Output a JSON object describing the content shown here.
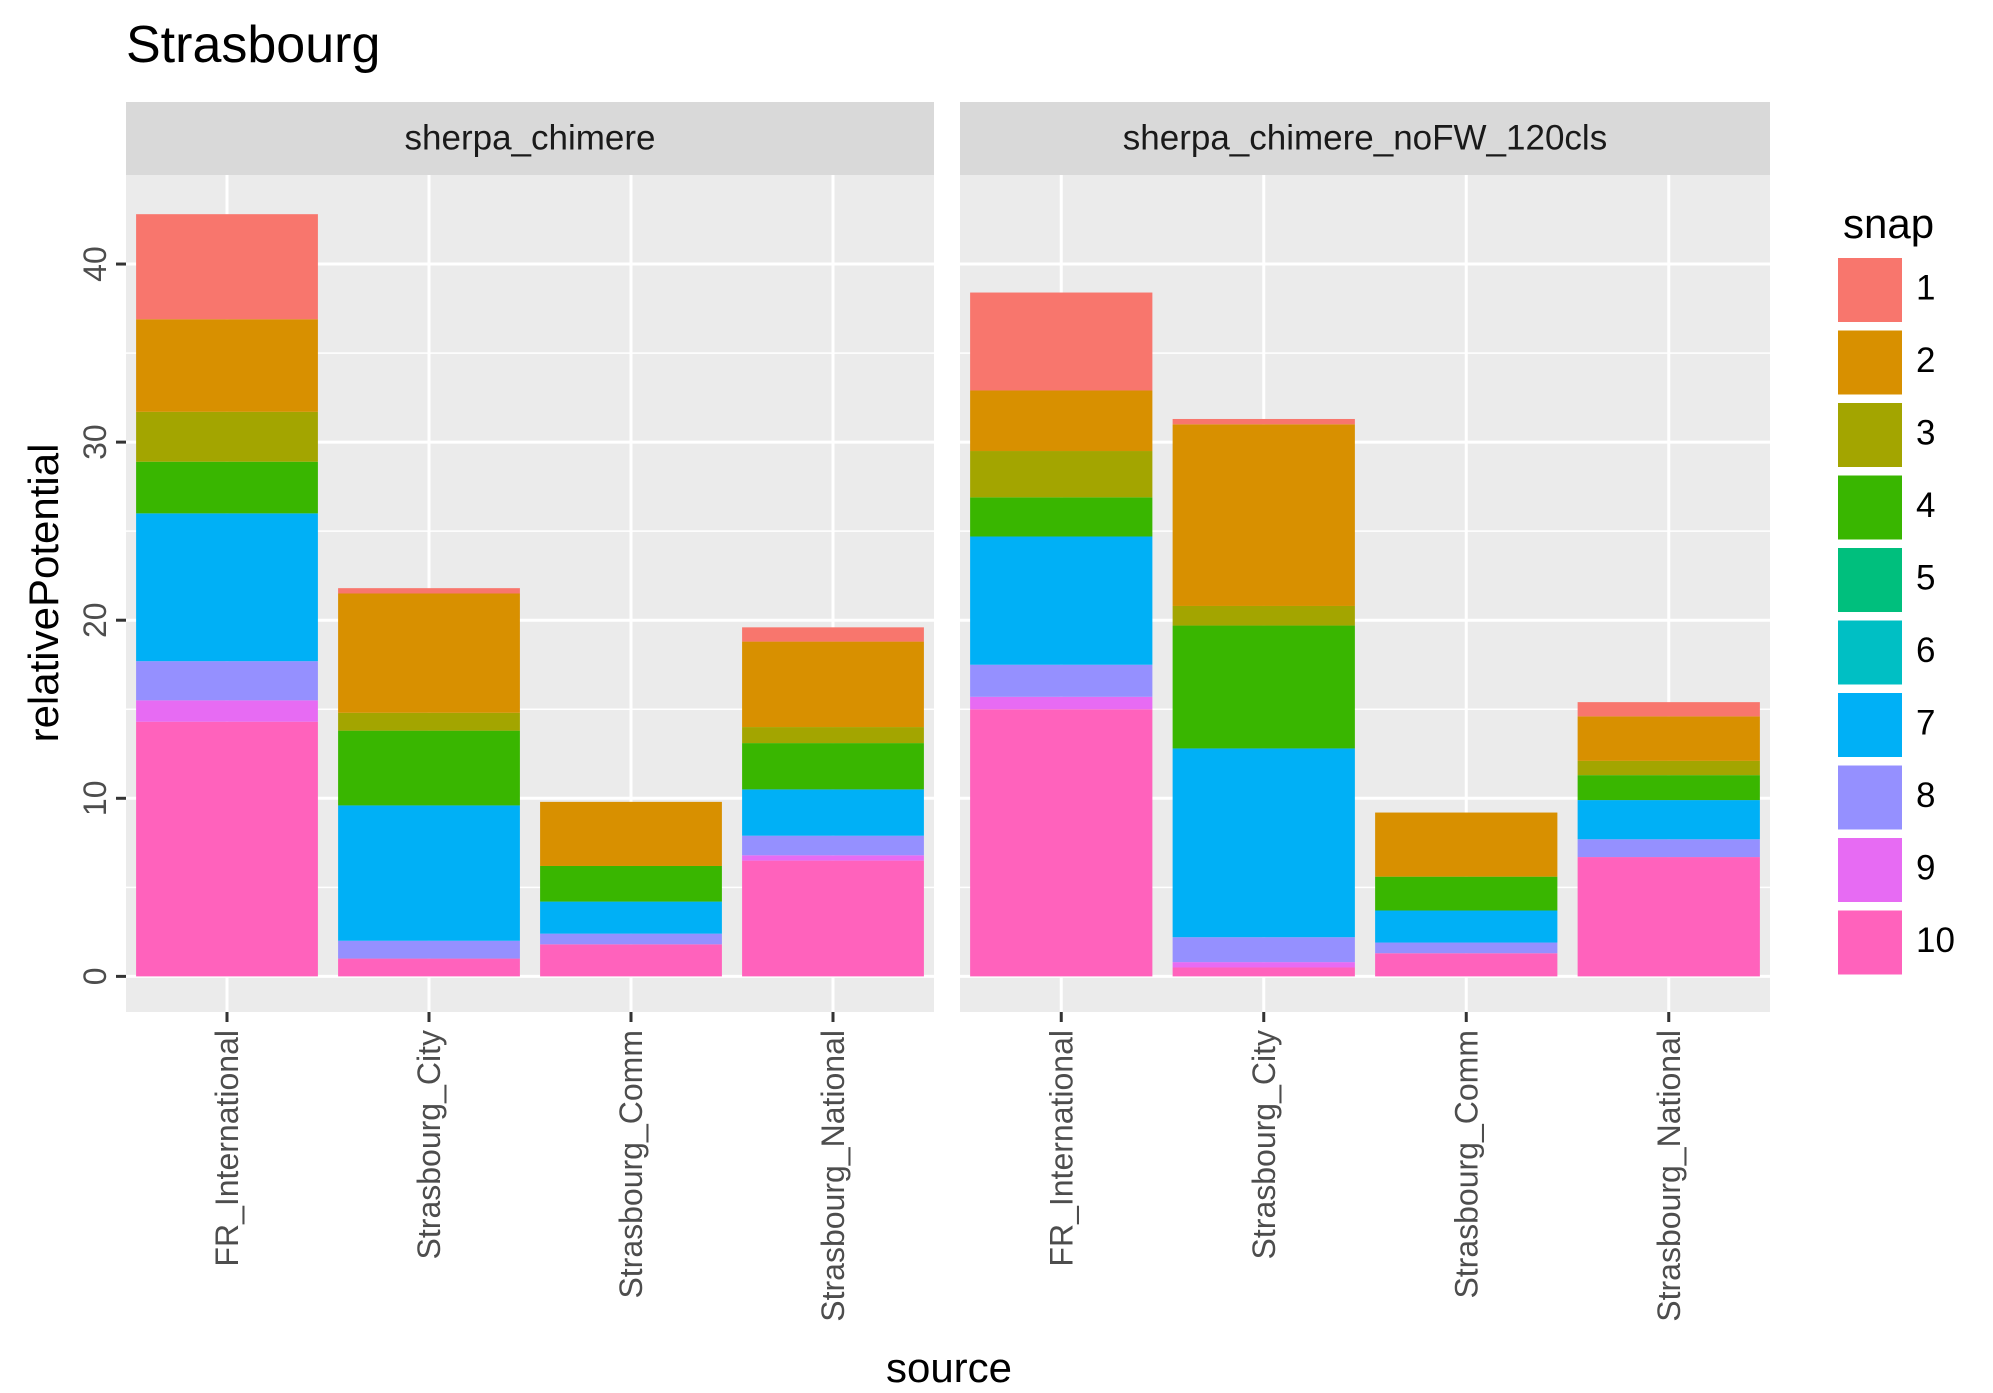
{
  "chart_data": {
    "type": "bar",
    "stacked": true,
    "faceted": true,
    "title": "Strasbourg",
    "xlabel": "source",
    "ylabel": "relativePotential",
    "ylim": [
      -2,
      45
    ],
    "y_ticks": [
      0,
      10,
      20,
      30,
      40
    ],
    "grid": true,
    "legend_position": "right",
    "legend_title": "snap",
    "categories": [
      "FR_International",
      "Strasbourg_City",
      "Strasbourg_Comm",
      "Strasbourg_National"
    ],
    "snap_levels": [
      "1",
      "2",
      "3",
      "4",
      "5",
      "6",
      "7",
      "8",
      "9",
      "10"
    ],
    "colors": [
      "#F8766D",
      "#D89000",
      "#A3A500",
      "#39B600",
      "#00BF7D",
      "#00BFC4",
      "#00B0F6",
      "#9590FF",
      "#E76BF3",
      "#FF62BC"
    ],
    "facets": [
      {
        "name": "sherpa_chimere",
        "series": [
          {
            "name": "1",
            "values": [
              5.9,
              0.3,
              0.0,
              0.8
            ]
          },
          {
            "name": "2",
            "values": [
              5.2,
              6.7,
              3.6,
              4.8
            ]
          },
          {
            "name": "3",
            "values": [
              2.8,
              1.0,
              0.0,
              0.9
            ]
          },
          {
            "name": "4",
            "values": [
              2.9,
              4.2,
              2.0,
              2.6
            ]
          },
          {
            "name": "5",
            "values": [
              0.0,
              0.0,
              0.0,
              0.0
            ]
          },
          {
            "name": "6",
            "values": [
              0.0,
              0.0,
              0.0,
              0.0
            ]
          },
          {
            "name": "7",
            "values": [
              8.3,
              7.6,
              1.8,
              2.6
            ]
          },
          {
            "name": "8",
            "values": [
              2.2,
              1.0,
              0.6,
              1.1
            ]
          },
          {
            "name": "9",
            "values": [
              1.2,
              0.0,
              0.0,
              0.3
            ]
          },
          {
            "name": "10",
            "values": [
              14.3,
              1.0,
              1.8,
              6.5
            ]
          }
        ]
      },
      {
        "name": "sherpa_chimere_noFW_120cls",
        "series": [
          {
            "name": "1",
            "values": [
              5.5,
              0.3,
              0.0,
              0.8
            ]
          },
          {
            "name": "2",
            "values": [
              3.4,
              10.2,
              3.6,
              2.5
            ]
          },
          {
            "name": "3",
            "values": [
              2.6,
              1.1,
              0.0,
              0.8
            ]
          },
          {
            "name": "4",
            "values": [
              2.2,
              6.9,
              1.9,
              1.4
            ]
          },
          {
            "name": "5",
            "values": [
              0.0,
              0.0,
              0.0,
              0.0
            ]
          },
          {
            "name": "6",
            "values": [
              0.0,
              0.0,
              0.0,
              0.0
            ]
          },
          {
            "name": "7",
            "values": [
              7.2,
              10.6,
              1.8,
              2.2
            ]
          },
          {
            "name": "8",
            "values": [
              1.8,
              1.4,
              0.6,
              1.0
            ]
          },
          {
            "name": "9",
            "values": [
              0.7,
              0.3,
              0.0,
              0.0
            ]
          },
          {
            "name": "10",
            "values": [
              15.0,
              0.5,
              1.3,
              6.7
            ]
          }
        ]
      }
    ]
  }
}
